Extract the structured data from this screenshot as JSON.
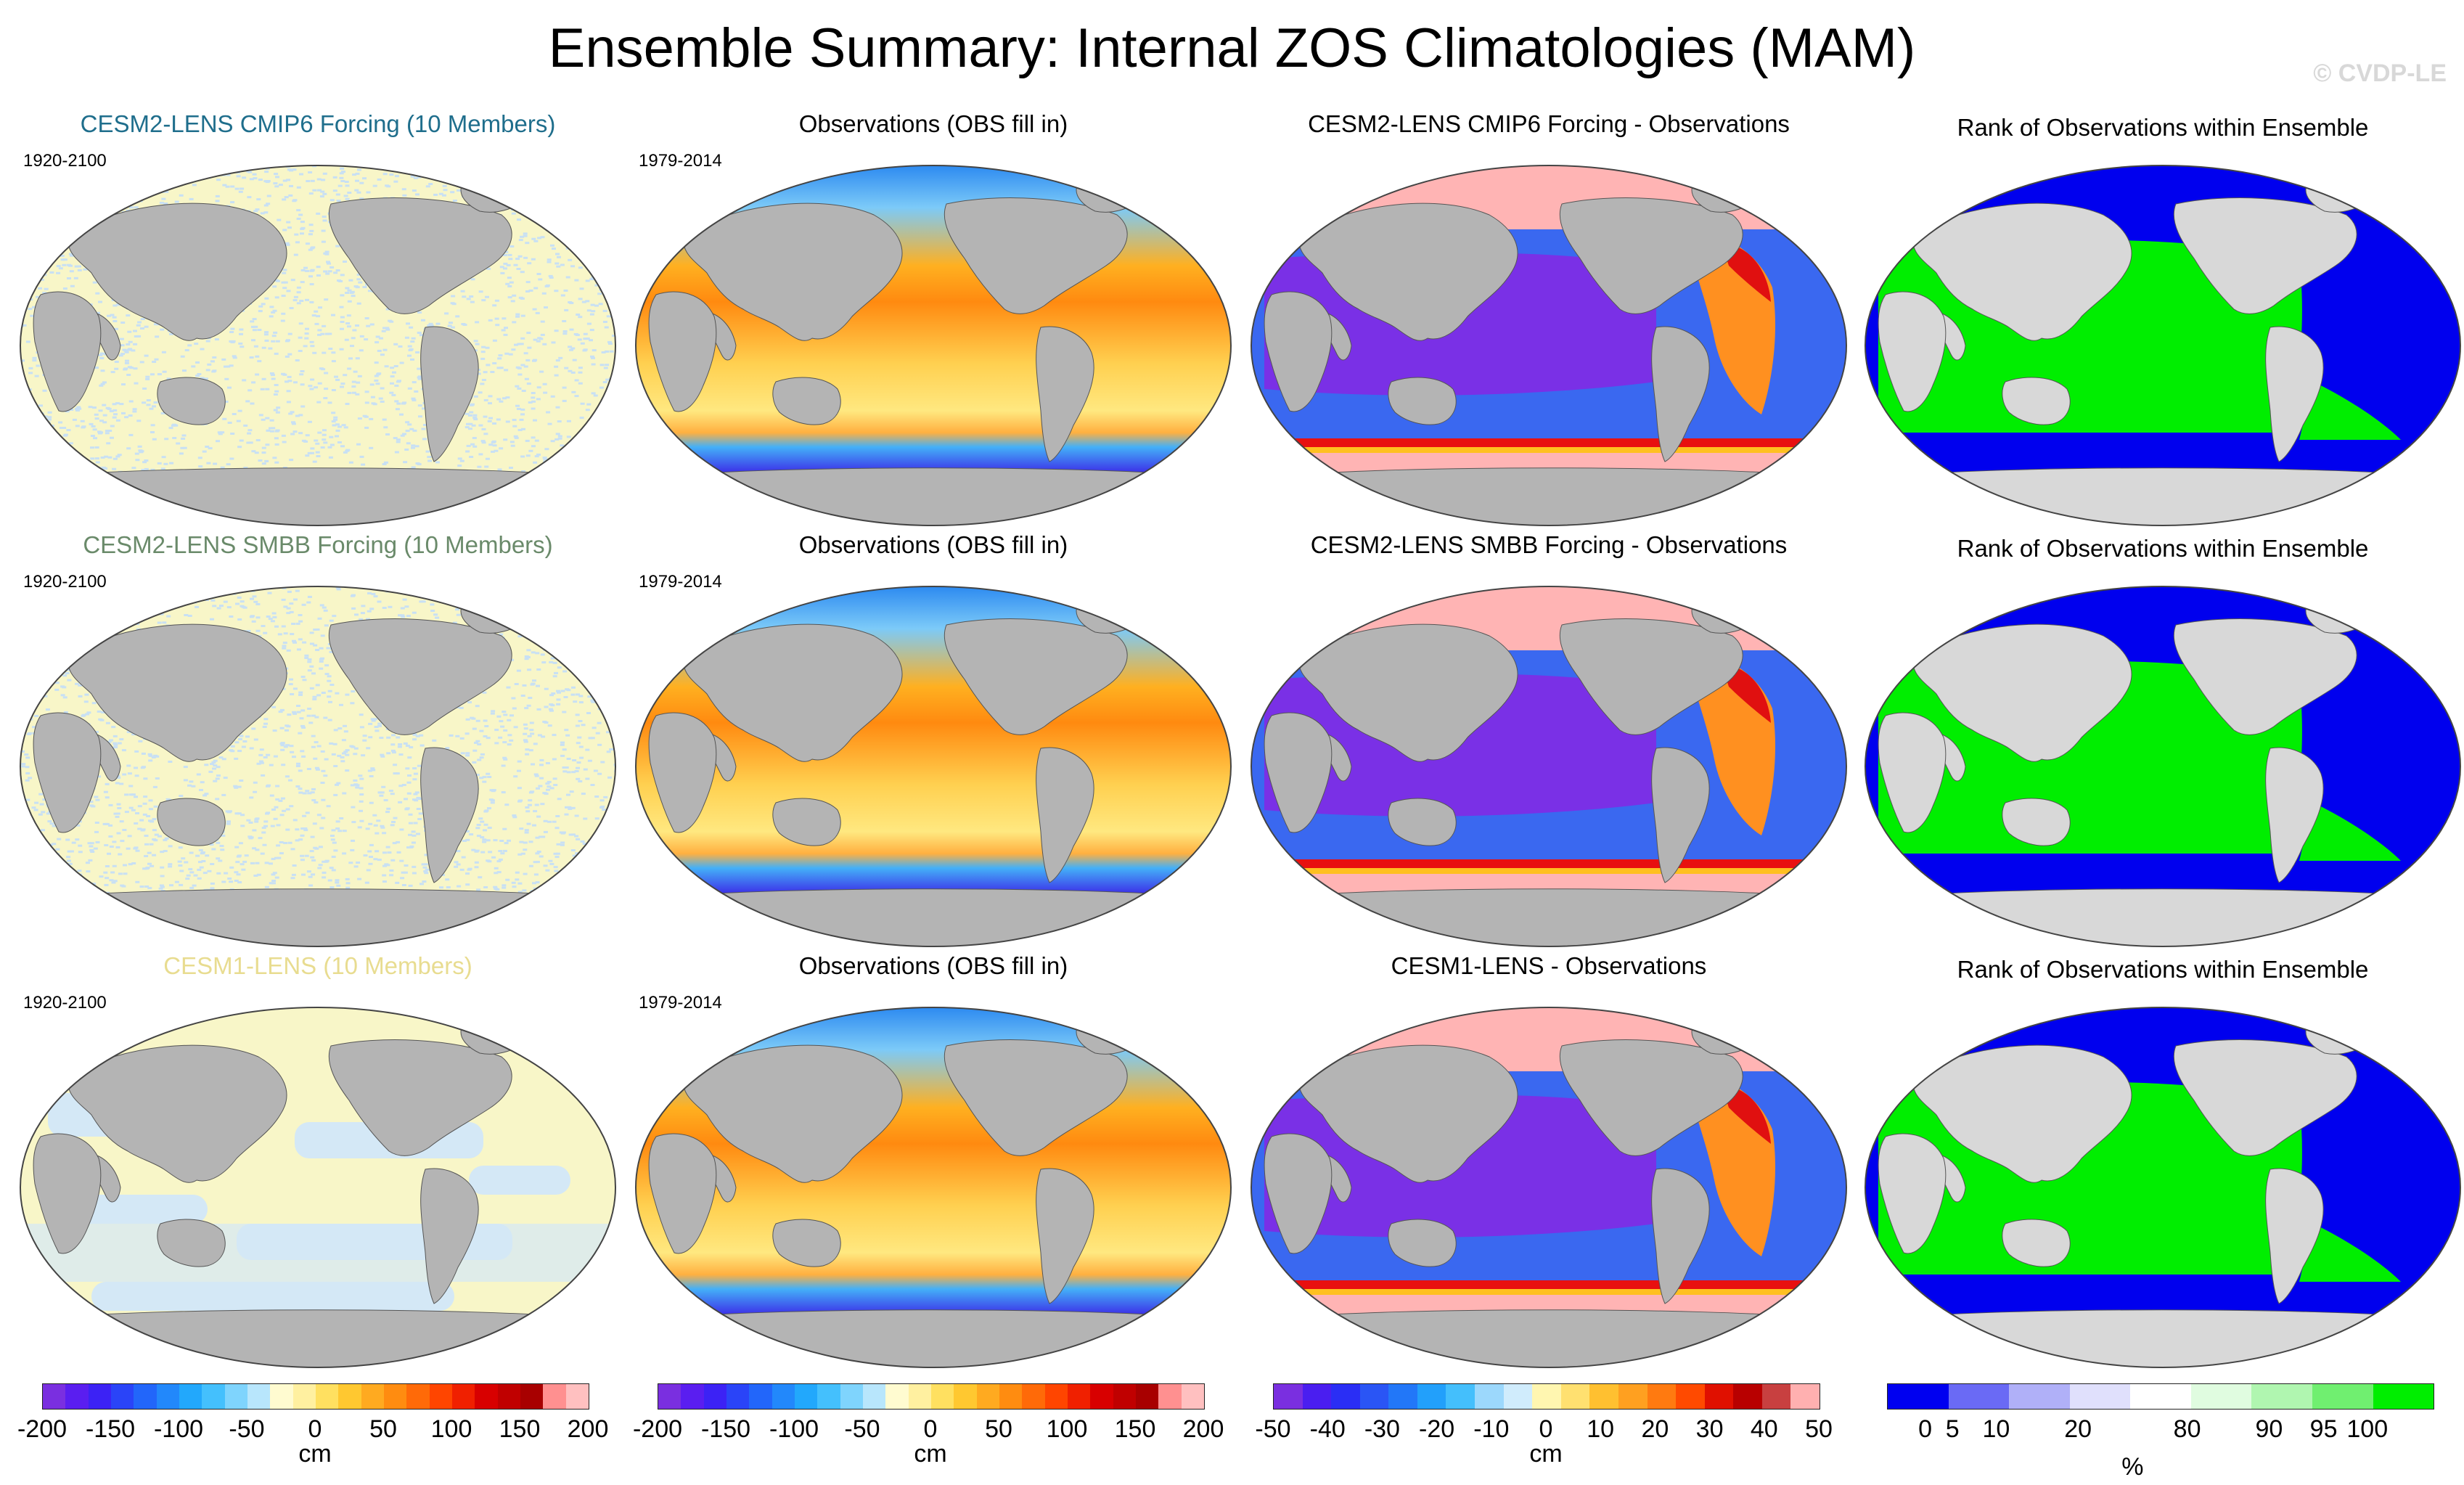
{
  "title": "Ensemble Summary: Internal ZOS Climatologies (MAM)",
  "watermark": "© CVDP-LE",
  "rows": [
    {
      "ens_title": "CESM2-LENS CMIP6 Forcing (10 Members)",
      "ens_title_color": "#1f6e8c",
      "ens_period": "1920-2100",
      "obs_title": "Observations (OBS fill in)",
      "obs_period": "1979-2014",
      "diff_title": "CESM2-LENS CMIP6 Forcing - Observations",
      "rank_title": "Rank of Observations within Ensemble"
    },
    {
      "ens_title": "CESM2-LENS SMBB Forcing (10 Members)",
      "ens_title_color": "#6a8a6a",
      "ens_period": "1920-2100",
      "obs_title": "Observations (OBS fill in)",
      "obs_period": "1979-2014",
      "diff_title": "CESM2-LENS SMBB Forcing - Observations",
      "rank_title": "Rank of Observations within Ensemble"
    },
    {
      "ens_title": "CESM1-LENS (10 Members)",
      "ens_title_color": "#e8dc90",
      "ens_period": "1920-2100",
      "obs_title": "Observations (OBS fill in)",
      "obs_period": "1979-2014",
      "diff_title": "CESM1-LENS - Observations",
      "rank_title": "Rank of Observations within Ensemble"
    }
  ],
  "colorbars": [
    {
      "unit": "cm",
      "ticks": [
        "-200",
        "-150",
        "-100",
        "-50",
        "0",
        "50",
        "100",
        "150",
        "200"
      ],
      "colors": [
        "#7a2fe0",
        "#5a1ef0",
        "#3c22f5",
        "#2a44f8",
        "#2266fa",
        "#2288fb",
        "#22a8fc",
        "#44c0fd",
        "#7fd4fd",
        "#b8e6fc",
        "#fffbd0",
        "#fff0a0",
        "#ffe060",
        "#ffc830",
        "#ffaa20",
        "#ff8c10",
        "#ff6a08",
        "#ff4500",
        "#f02000",
        "#d80000",
        "#c00000",
        "#a80000",
        "#ff9090",
        "#ffc0c0"
      ]
    },
    {
      "unit": "cm",
      "ticks": [
        "-200",
        "-150",
        "-100",
        "-50",
        "0",
        "50",
        "100",
        "150",
        "200"
      ],
      "colors": [
        "#7a2fe0",
        "#5a1ef0",
        "#3c22f5",
        "#2a44f8",
        "#2266fa",
        "#2288fb",
        "#22a8fc",
        "#44c0fd",
        "#7fd4fd",
        "#b8e6fc",
        "#fffbd0",
        "#fff0a0",
        "#ffe060",
        "#ffc830",
        "#ffaa20",
        "#ff8c10",
        "#ff6a08",
        "#ff4500",
        "#f02000",
        "#d80000",
        "#c00000",
        "#a80000",
        "#ff9090",
        "#ffc0c0"
      ]
    },
    {
      "unit": "cm",
      "ticks": [
        "-50",
        "-40",
        "-30",
        "-20",
        "-10",
        "0",
        "10",
        "20",
        "30",
        "40",
        "50"
      ],
      "colors": [
        "#7a2fe0",
        "#4a1ef0",
        "#2a2ef5",
        "#2a55f5",
        "#2277f8",
        "#22a0fb",
        "#44bffc",
        "#9cd8fc",
        "#d0ecfc",
        "#fff6b0",
        "#ffe070",
        "#ffc030",
        "#ffa020",
        "#ff7a10",
        "#ff4a00",
        "#e01000",
        "#b80000",
        "#c84040",
        "#ffb0b0"
      ]
    },
    {
      "unit": "%",
      "ticks": [
        "0",
        "5",
        "10",
        "20",
        "80",
        "90",
        "95",
        "100"
      ],
      "colors": [
        "#0000f0",
        "#6a6af5",
        "#b0b0f8",
        "#e0e0fc",
        "#ffffff",
        "#e0fce0",
        "#b0f6b0",
        "#70ef70",
        "#00ee00"
      ]
    }
  ]
}
